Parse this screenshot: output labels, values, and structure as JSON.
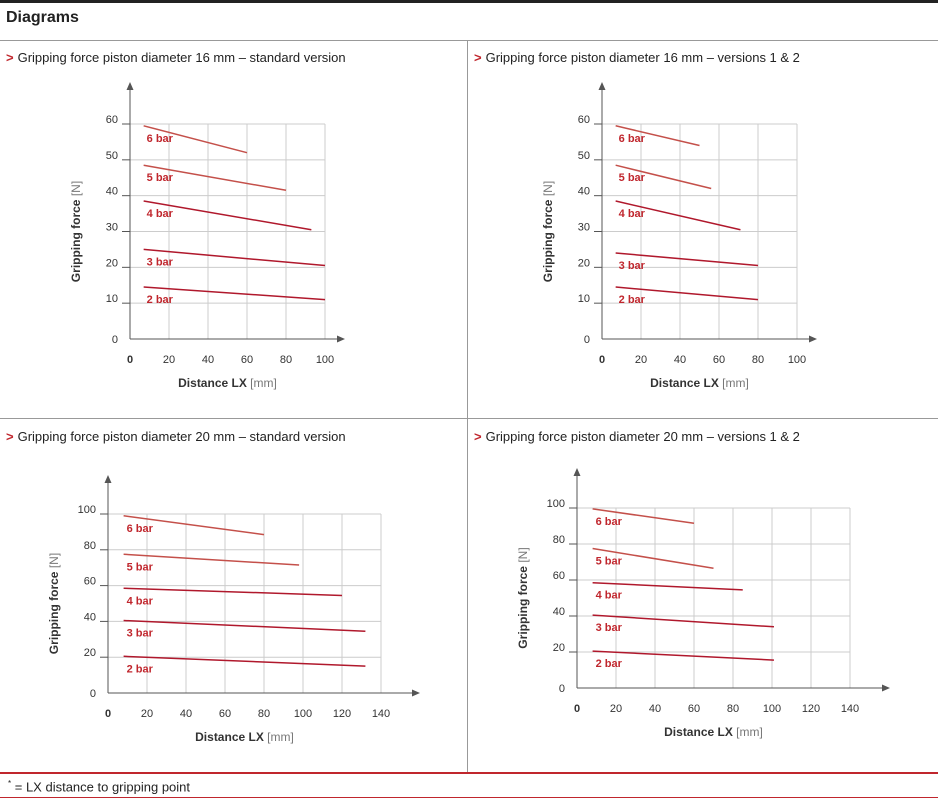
{
  "page": {
    "title": "Diagrams",
    "footnote_mark": "*",
    "footnote_text": "= LX distance to gripping point"
  },
  "colors": {
    "accent": "#c0262d",
    "series_dark": "#b0182c",
    "series_light": "#c4504a",
    "label": "#c0262d",
    "grid": "#cccccc",
    "axis": "#555555"
  },
  "chart_data": [
    {
      "type": "line",
      "title": "Gripping force piston diameter 16 mm – standard version",
      "xlabel": "Distance LX",
      "xunit": "[mm]",
      "ylabel": "Gripping force",
      "yunit": "[N]",
      "xlim": [
        0,
        100
      ],
      "ylim": [
        0,
        60
      ],
      "xticks": [
        0,
        20,
        40,
        60,
        80,
        100
      ],
      "yticks": [
        0,
        10,
        20,
        30,
        40,
        50,
        60
      ],
      "grid": true,
      "series": [
        {
          "name": "6 bar",
          "x": [
            7,
            60
          ],
          "y": [
            59.5,
            52
          ]
        },
        {
          "name": "5 bar",
          "x": [
            7,
            80
          ],
          "y": [
            48.5,
            41.5
          ]
        },
        {
          "name": "4 bar",
          "x": [
            7,
            93
          ],
          "y": [
            38.5,
            30.5
          ]
        },
        {
          "name": "3 bar",
          "x": [
            7,
            100
          ],
          "y": [
            25,
            20.5
          ]
        },
        {
          "name": "2 bar",
          "x": [
            7,
            100
          ],
          "y": [
            14.5,
            11
          ]
        }
      ]
    },
    {
      "type": "line",
      "title": "Gripping force piston diameter 16 mm – versions 1 & 2",
      "xlabel": "Distance LX",
      "xunit": "[mm]",
      "ylabel": "Gripping force",
      "yunit": "[N]",
      "xlim": [
        0,
        100
      ],
      "ylim": [
        0,
        60
      ],
      "xticks": [
        0,
        20,
        40,
        60,
        80,
        100
      ],
      "yticks": [
        0,
        10,
        20,
        30,
        40,
        50,
        60
      ],
      "grid": true,
      "series": [
        {
          "name": "6 bar",
          "x": [
            7,
            50
          ],
          "y": [
            59.5,
            54
          ]
        },
        {
          "name": "5 bar",
          "x": [
            7,
            56
          ],
          "y": [
            48.5,
            42
          ]
        },
        {
          "name": "4 bar",
          "x": [
            7,
            71
          ],
          "y": [
            38.5,
            30.5
          ]
        },
        {
          "name": "3 bar",
          "x": [
            7,
            80
          ],
          "y": [
            24,
            20.5
          ]
        },
        {
          "name": "2 bar",
          "x": [
            7,
            80
          ],
          "y": [
            14.5,
            11
          ]
        }
      ]
    },
    {
      "type": "line",
      "title": "Gripping force piston diameter 20 mm – standard version",
      "xlabel": "Distance LX",
      "xunit": "[mm]",
      "ylabel": "Gripping force",
      "yunit": "[N]",
      "xlim": [
        0,
        140
      ],
      "ylim": [
        0,
        100
      ],
      "xticks": [
        0,
        20,
        40,
        60,
        80,
        100,
        120,
        140
      ],
      "yticks": [
        0,
        20,
        40,
        60,
        80,
        100
      ],
      "grid": true,
      "series": [
        {
          "name": "6 bar",
          "x": [
            8,
            80
          ],
          "y": [
            99,
            88.5
          ]
        },
        {
          "name": "5 bar",
          "x": [
            8,
            98
          ],
          "y": [
            77.5,
            71.5
          ]
        },
        {
          "name": "4 bar",
          "x": [
            8,
            120
          ],
          "y": [
            58.5,
            54.5
          ]
        },
        {
          "name": "3 bar",
          "x": [
            8,
            132
          ],
          "y": [
            40.5,
            34.5
          ]
        },
        {
          "name": "2 bar",
          "x": [
            8,
            132
          ],
          "y": [
            20.5,
            15
          ]
        }
      ]
    },
    {
      "type": "line",
      "title": "Gripping force piston diameter 20 mm – versions 1 & 2",
      "xlabel": "Distance LX",
      "xunit": "[mm]",
      "ylabel": "Gripping force",
      "yunit": "[N]",
      "xlim": [
        0,
        140
      ],
      "ylim": [
        0,
        100
      ],
      "xticks": [
        0,
        20,
        40,
        60,
        80,
        100,
        120,
        140
      ],
      "yticks": [
        0,
        20,
        40,
        60,
        80,
        100
      ],
      "grid": true,
      "series": [
        {
          "name": "6 bar",
          "x": [
            8,
            60
          ],
          "y": [
            99.5,
            91.5
          ]
        },
        {
          "name": "5 bar",
          "x": [
            8,
            70
          ],
          "y": [
            77.5,
            66.5
          ]
        },
        {
          "name": "4 bar",
          "x": [
            8,
            85
          ],
          "y": [
            58.5,
            54.5
          ]
        },
        {
          "name": "3 bar",
          "x": [
            8,
            101
          ],
          "y": [
            40.5,
            34
          ]
        },
        {
          "name": "2 bar",
          "x": [
            8,
            101
          ],
          "y": [
            20.5,
            15.5
          ]
        }
      ]
    }
  ]
}
